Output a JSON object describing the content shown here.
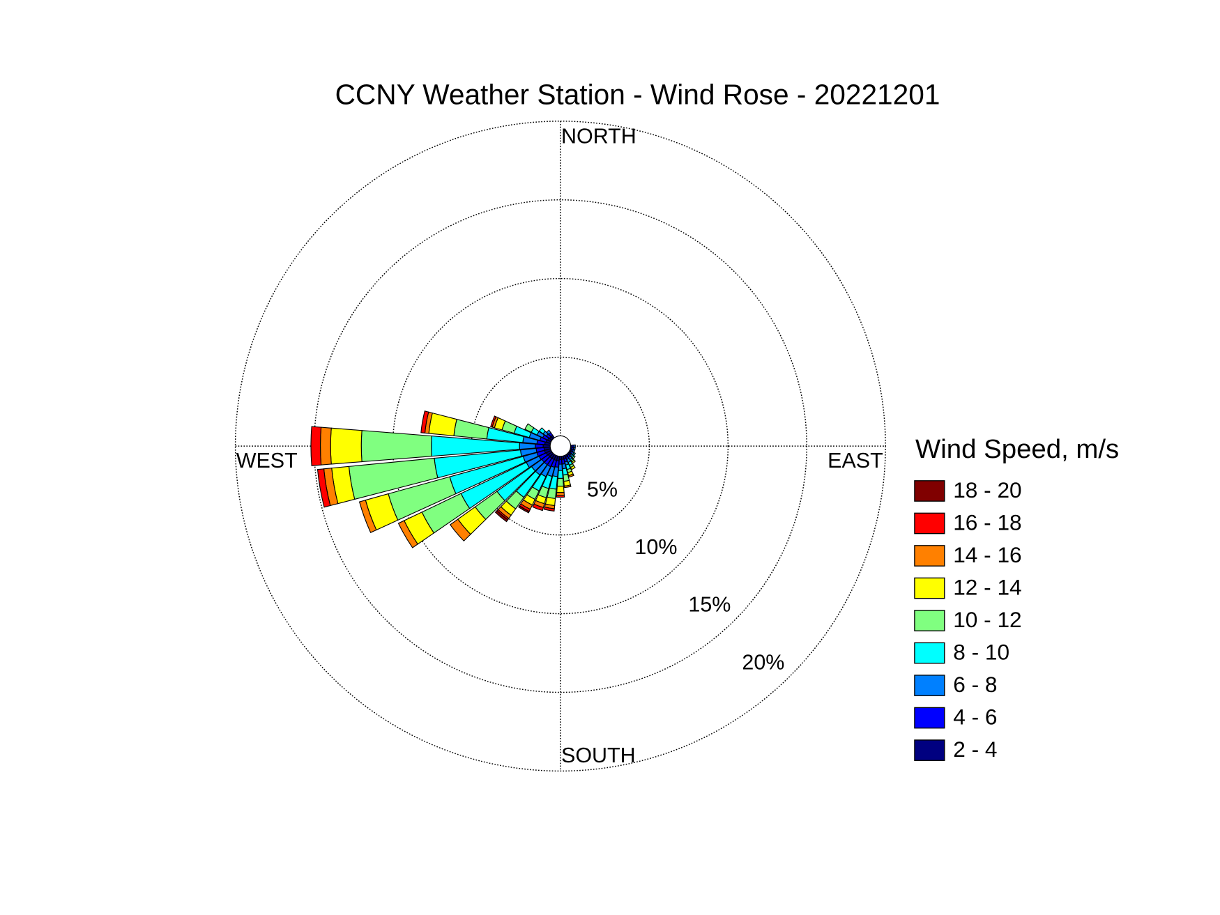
{
  "chart_data": {
    "type": "windrose",
    "title": "CCNY Weather Station - Wind Rose - 20221201",
    "legend_title": "Wind Speed, m/s",
    "direction_labels": {
      "north": "NORTH",
      "east": "EAST",
      "south": "SOUTH",
      "west": "WEST"
    },
    "directions": [
      90,
      100,
      110,
      120,
      130,
      140,
      150,
      160,
      170,
      180,
      190,
      200,
      210,
      220,
      230,
      240,
      250,
      260,
      270,
      280,
      290,
      300,
      310,
      320
    ],
    "rlim": [
      0,
      20
    ],
    "rticks": [
      {
        "value": 5,
        "label": "5%"
      },
      {
        "value": 10,
        "label": "10%"
      },
      {
        "value": 15,
        "label": "15%"
      },
      {
        "value": 20,
        "label": "20%"
      }
    ],
    "grid": true,
    "legend": "right",
    "series": [
      {
        "name": "2 - 4",
        "color": "#000080",
        "values": [
          0.1,
          0.1,
          0.1,
          0.1,
          0.1,
          0.1,
          0.15,
          0.2,
          0.2,
          0.2,
          0.3,
          0.3,
          0.3,
          0.3,
          0.3,
          0.35,
          0.4,
          0.4,
          0.45,
          0.35,
          0.3,
          0.25,
          0.2,
          0.2
        ]
      },
      {
        "name": "4 - 6",
        "color": "#0000ff",
        "values": [
          0.1,
          0.1,
          0.1,
          0.1,
          0.1,
          0.15,
          0.15,
          0.2,
          0.3,
          0.3,
          0.4,
          0.45,
          0.5,
          0.5,
          0.5,
          0.5,
          0.5,
          0.5,
          0.5,
          0.5,
          0.4,
          0.35,
          0.25,
          0.2
        ]
      },
      {
        "name": "6 - 8",
        "color": "#0080ff",
        "values": [
          0.1,
          0.1,
          0.1,
          0.1,
          0.1,
          0.15,
          0.2,
          0.2,
          0.3,
          0.4,
          0.6,
          0.6,
          0.7,
          0.8,
          0.8,
          0.9,
          0.9,
          1.0,
          1.0,
          0.9,
          0.7,
          0.4,
          0.25,
          0.2
        ]
      },
      {
        "name": "8 - 10",
        "color": "#00ffff",
        "values": [
          0,
          0,
          0,
          0.1,
          0.1,
          0.1,
          0.2,
          0.3,
          0.4,
          0.5,
          0.8,
          0.8,
          1.0,
          1.75,
          2.7,
          4.6,
          4.85,
          5.5,
          5.6,
          2.3,
          1.0,
          0.4,
          0.3,
          0
        ]
      },
      {
        "name": "10 - 12",
        "color": "#80ff80",
        "values": [
          0,
          0,
          0,
          0,
          0.1,
          0.1,
          0.15,
          0.2,
          0.4,
          0.5,
          0.6,
          0.6,
          0.6,
          0.9,
          1.7,
          2.75,
          4.05,
          5.45,
          4.45,
          2.1,
          0.8,
          0.45,
          0,
          0
        ]
      },
      {
        "name": "12 - 14",
        "color": "#ffff00",
        "values": [
          0,
          0,
          0,
          0,
          0,
          0.1,
          0.15,
          0.2,
          0.3,
          0.4,
          0.45,
          0.4,
          0.4,
          0.5,
          1.35,
          1.25,
          1.5,
          1.1,
          1.95,
          1.6,
          0.5,
          0,
          0,
          0
        ]
      },
      {
        "name": "14 - 16",
        "color": "#ff8000",
        "values": [
          0,
          0,
          0,
          0,
          0,
          0,
          0,
          0.1,
          0.1,
          0.2,
          0.2,
          0.25,
          0.3,
          0.25,
          0.6,
          0.4,
          0.4,
          0.5,
          0.65,
          0.25,
          0.15,
          0,
          0,
          0
        ]
      },
      {
        "name": "16 - 18",
        "color": "#ff0000",
        "values": [
          0,
          0,
          0,
          0,
          0,
          0,
          0,
          0,
          0,
          0.1,
          0.15,
          0.2,
          0.15,
          0.1,
          0,
          0,
          0,
          0.4,
          0.6,
          0.25,
          0.1,
          0,
          0,
          0
        ]
      },
      {
        "name": "18 - 20",
        "color": "#800000",
        "values": [
          0,
          0,
          0,
          0,
          0,
          0,
          0,
          0,
          0,
          0,
          0,
          0,
          0.1,
          0.15,
          0,
          0,
          0,
          0,
          0,
          0,
          0,
          0,
          0,
          0
        ]
      }
    ]
  }
}
